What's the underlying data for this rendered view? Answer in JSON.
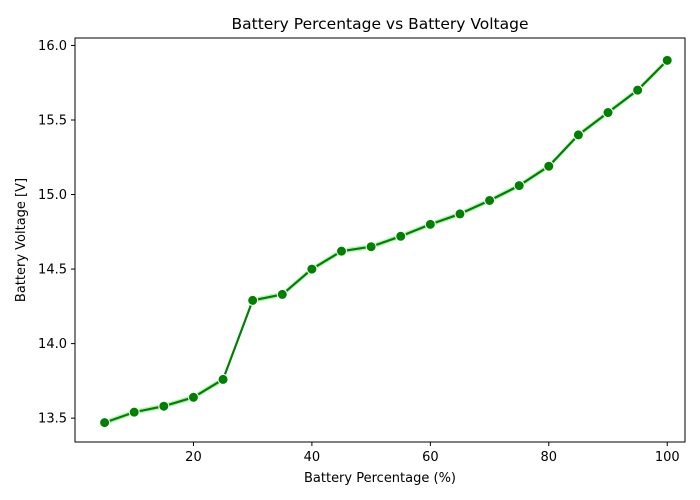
{
  "chart_data": {
    "type": "line",
    "title": "Battery Percentage vs Battery Voltage",
    "xlabel": "Battery Percentage (%)",
    "ylabel": "Battery Voltage [V]",
    "xlim": [
      0,
      103
    ],
    "ylim": [
      13.34,
      16.05
    ],
    "xticks": [
      20,
      40,
      60,
      80,
      100
    ],
    "yticks": [
      13.5,
      14.0,
      14.5,
      15.0,
      15.5,
      16.0
    ],
    "ytick_labels": [
      "13.5",
      "14.0",
      "14.5",
      "15.0",
      "15.5",
      "16.0"
    ],
    "grid": false,
    "series": [
      {
        "color": "#008000",
        "band_color": "#90ee90",
        "marker": "circle",
        "x": [
          5,
          10,
          15,
          20,
          25,
          30,
          35,
          40,
          45,
          50,
          55,
          60,
          65,
          70,
          75,
          80,
          85,
          90,
          95,
          100
        ],
        "y": [
          13.47,
          13.54,
          13.58,
          13.64,
          13.76,
          14.29,
          14.33,
          14.5,
          14.62,
          14.65,
          14.72,
          14.8,
          14.87,
          14.96,
          15.06,
          15.19,
          15.4,
          15.55,
          15.7,
          15.9
        ]
      }
    ]
  }
}
